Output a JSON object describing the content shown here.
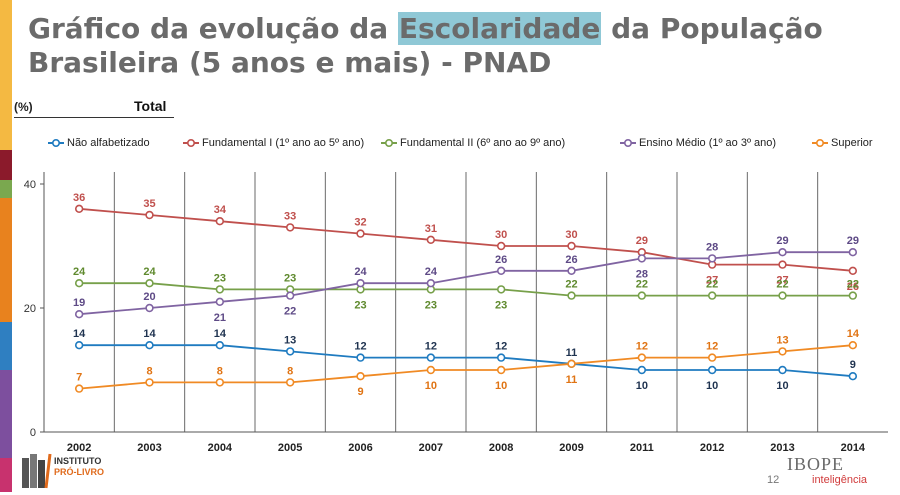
{
  "title": {
    "part1": "Gráfico da evolução da ",
    "highlight": "Escolaridade",
    "part2": " da População Brasileira (5 anos e mais) - PNAD"
  },
  "unit_label": "(%)",
  "panel_label": "Total",
  "footer": {
    "logo_line1": "INSTITUTO",
    "logo_line2": "PRÓ-LIVRO",
    "page_number": "12",
    "brand": "IBOPE",
    "brand_sub": "inteligência"
  },
  "colors": {
    "strip": [
      "#f4b942",
      "#8b1a2b",
      "#7aa84f",
      "#e8821e",
      "#2f7fc1",
      "#7d4f9e",
      "#c8326e"
    ],
    "highlight": "#8fc8d6"
  },
  "chart_data": {
    "type": "line",
    "x": [
      "2002",
      "2003",
      "2004",
      "2005",
      "2006",
      "2007",
      "2008",
      "2009",
      "2011",
      "2012",
      "2013",
      "2014"
    ],
    "ylim": [
      0,
      40
    ],
    "yticks": [
      "0",
      "20",
      "40"
    ],
    "grid": "vertical",
    "legend_position": "top",
    "series": [
      {
        "name": "Não alfabetizado",
        "color": "#1f7bc0",
        "label_color": "#1f3350",
        "values": [
          14,
          14,
          14,
          13,
          12,
          12,
          12,
          11,
          10,
          10,
          10,
          9
        ]
      },
      {
        "name": "Fundamental I (1º ano ao 5º ano)",
        "color": "#c0504d",
        "label_color": "#c0504d",
        "values": [
          36,
          35,
          34,
          33,
          32,
          31,
          30,
          30,
          29,
          27,
          27,
          26
        ]
      },
      {
        "name": "Fundamental II (6º ano ao 9º ano)",
        "color": "#77a04a",
        "label_color": "#5f8a2e",
        "values": [
          24,
          24,
          23,
          23,
          23,
          23,
          23,
          22,
          22,
          22,
          22,
          22
        ]
      },
      {
        "name": "Ensino Médio (1º ao 3º ano)",
        "color": "#8064a2",
        "label_color": "#5e4a86",
        "values": [
          19,
          20,
          21,
          22,
          24,
          24,
          26,
          26,
          28,
          28,
          29,
          29
        ]
      },
      {
        "name": "Superior",
        "color": "#f08a24",
        "label_color": "#e07414",
        "values": [
          7,
          8,
          8,
          8,
          9,
          10,
          10,
          11,
          12,
          12,
          13,
          14
        ]
      }
    ]
  }
}
